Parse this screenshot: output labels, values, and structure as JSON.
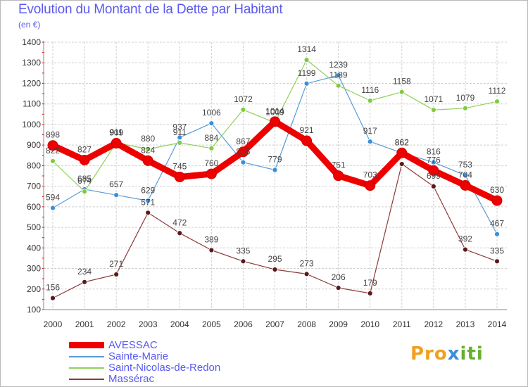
{
  "title": "Evolution du Montant de la Dette par Habitant",
  "subtitle": "(en €)",
  "logo": {
    "part1": "Pro",
    "part2": "x",
    "part3": "iti"
  },
  "colors": {
    "title": "#5a5af0",
    "grid": "#d0d0d0",
    "axis_text": "#333333",
    "label_text": "#444444"
  },
  "chart_data": {
    "type": "line",
    "x": [
      "2000",
      "2001",
      "2002",
      "2003",
      "2004",
      "2005",
      "2006",
      "2007",
      "2008",
      "2009",
      "2010",
      "2011",
      "2012",
      "2013",
      "2014"
    ],
    "ylim": [
      100,
      1400
    ],
    "yticks": [
      100,
      200,
      300,
      400,
      500,
      600,
      700,
      800,
      900,
      1000,
      1100,
      1200,
      1300,
      1400
    ],
    "grid": true,
    "legend_position": "bottom-left",
    "series": [
      {
        "name": "AVESSAC",
        "color": "#ee0000",
        "marker_fill": "#ee0000",
        "line_width": 9,
        "marker_radius": 7,
        "values": [
          898,
          827,
          909,
          824,
          745,
          760,
          867,
          1014,
          921,
          751,
          703,
          862,
          776,
          704,
          630
        ],
        "labels": [
          "898",
          "827",
          "909",
          "824",
          "745",
          "760",
          "867",
          "1014",
          "921",
          "751",
          "703",
          "862",
          "776",
          "704",
          "630"
        ]
      },
      {
        "name": "Sainte-Marie",
        "color": "#5b9bd5",
        "marker_fill": "#3a8fd8",
        "line_width": 1.2,
        "marker_radius": 3.5,
        "values": [
          594,
          685,
          657,
          629,
          937,
          1006,
          816,
          779,
          1199,
          1239,
          917,
          862,
          816,
          753,
          467
        ],
        "labels": [
          "594",
          "685",
          "657",
          "629",
          "937",
          "1006",
          "816",
          "779",
          "1199",
          "1239",
          "917",
          "862",
          "816",
          "753",
          "467"
        ]
      },
      {
        "name": "Saint-Nicolas-de-Redon",
        "color": "#8fd15a",
        "marker_fill": "#80cc40",
        "line_width": 1.2,
        "marker_radius": 3.5,
        "values": [
          822,
          674,
          911,
          880,
          911,
          884,
          1072,
          1009,
          1314,
          1189,
          1116,
          1158,
          1071,
          1079,
          1112
        ],
        "labels": [
          "822",
          "674",
          "911",
          "880",
          "911",
          "884",
          "1072",
          "1009",
          "1314",
          "1189",
          "1116",
          "1158",
          "1071",
          "1079",
          "1112"
        ]
      },
      {
        "name": "Massérac",
        "color": "#8b3a3a",
        "marker_fill": "#5a1a1a",
        "line_width": 1.2,
        "marker_radius": 3.5,
        "values": [
          156,
          234,
          271,
          571,
          472,
          389,
          335,
          295,
          273,
          206,
          179,
          808,
          699,
          392,
          335
        ],
        "labels": [
          "156",
          "234",
          "271",
          "571",
          "472",
          "389",
          "335",
          "295",
          "273",
          "206",
          "179",
          "",
          "699",
          "392",
          "335"
        ]
      }
    ]
  }
}
